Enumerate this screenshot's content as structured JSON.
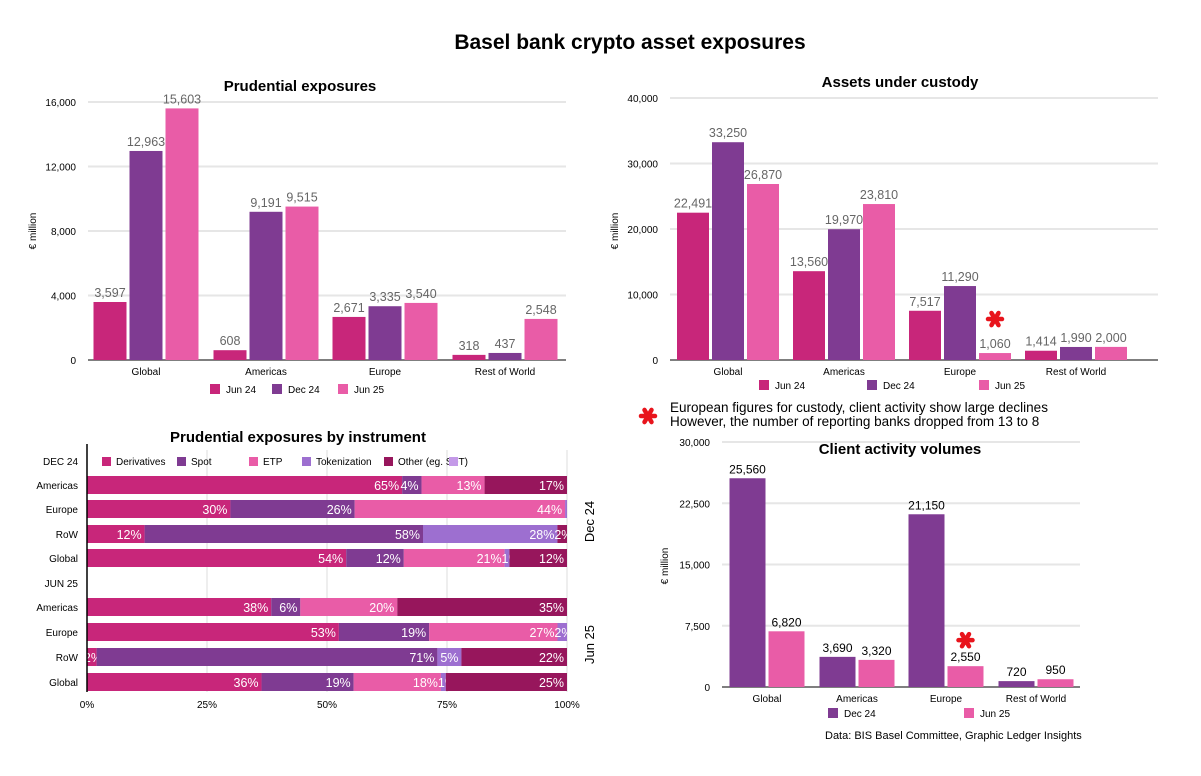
{
  "title": "Basel bank crypto asset exposures",
  "colors": {
    "jun24": "#c8267a",
    "dec24": "#7f3b92",
    "jun25": "#e95ca7",
    "derivatives": "#c8267a",
    "spot": "#7f3b92",
    "etp": "#e95ca7",
    "tokenization": "#9d6fd0",
    "other": "#97165c",
    "unlabeled": "#c49ae8",
    "asterisk": "#e8141c"
  },
  "note": {
    "icon": "asterisk-icon",
    "line1": "European figures for custody, client activity show large declines",
    "line2": "However, the number of reporting banks dropped from 13 to 8"
  },
  "source": "Data: BIS Basel Committee, Graphic Ledger Insights",
  "chart_data": [
    {
      "type": "bar",
      "title": "Prudential exposures",
      "ylabel": "€ million",
      "ylim": [
        0,
        16000
      ],
      "yticks": [
        "0",
        "4,000",
        "8,000",
        "12,000",
        "16,000"
      ],
      "grid": true,
      "legend": "bottom",
      "categories": [
        "Global",
        "Americas",
        "Europe",
        "Rest of World"
      ],
      "series": [
        {
          "name": "Jun 24",
          "values": [
            3597,
            608,
            2671,
            318
          ],
          "labels": [
            "3,597",
            "608",
            "2,671",
            "318"
          ]
        },
        {
          "name": "Dec 24",
          "values": [
            12963,
            9191,
            3335,
            437
          ],
          "labels": [
            "12,963",
            "9,191",
            "3,335",
            "437"
          ]
        },
        {
          "name": "Jun 25",
          "values": [
            15603,
            9515,
            3540,
            2548
          ],
          "labels": [
            "15,603",
            "9,515",
            "3,540",
            "2,548"
          ]
        }
      ]
    },
    {
      "type": "bar",
      "title": "Assets under custody",
      "ylabel": "€ million",
      "ylim": [
        0,
        40000
      ],
      "yticks": [
        "0",
        "10,000",
        "20,000",
        "30,000",
        "40,000"
      ],
      "grid": true,
      "legend": "bottom",
      "categories": [
        "Global",
        "Americas",
        "Europe",
        "Rest of World"
      ],
      "series": [
        {
          "name": "Jun 24",
          "values": [
            22491,
            13560,
            7517,
            1414
          ],
          "labels": [
            "22,491",
            "13,560",
            "7,517",
            "1,414"
          ]
        },
        {
          "name": "Dec 24",
          "values": [
            33250,
            19970,
            11290,
            1990
          ],
          "labels": [
            "33,250",
            "19,970",
            "11,290",
            "1,990"
          ]
        },
        {
          "name": "Jun 25",
          "values": [
            26870,
            23810,
            1060,
            2000
          ],
          "labels": [
            "26,870",
            "23,810",
            "1,060",
            "2,000"
          ]
        }
      ],
      "annotation": {
        "category": "Europe",
        "series": "Jun 25",
        "marker": "asterisk-icon"
      }
    },
    {
      "type": "bar",
      "title": "Client activity volumes",
      "ylabel": "€ million",
      "ylim": [
        0,
        30000
      ],
      "yticks": [
        "0",
        "7,500",
        "15,000",
        "22,500",
        "30,000"
      ],
      "grid": true,
      "legend": "bottom",
      "categories": [
        "Global",
        "Americas",
        "Europe",
        "Rest of World"
      ],
      "series": [
        {
          "name": "Dec 24",
          "values": [
            25560,
            3690,
            21150,
            720
          ],
          "labels": [
            "25,560",
            "3,690",
            "21,150",
            "720"
          ]
        },
        {
          "name": "Jun 25",
          "values": [
            6820,
            3320,
            2550,
            950
          ],
          "labels": [
            "6,820",
            "3,320",
            "2,550",
            "950"
          ]
        }
      ],
      "annotation": {
        "category": "Europe",
        "series": "Jun 25",
        "marker": "asterisk-icon"
      }
    },
    {
      "type": "bar",
      "orientation": "horizontal-stacked-100",
      "title": "Prudential exposures by instrument",
      "xlim": [
        0,
        100
      ],
      "xticks": [
        "0%",
        "25%",
        "50%",
        "75%",
        "100%"
      ],
      "grid": true,
      "legend": "top",
      "legend_entries": [
        "Derivatives",
        "Spot",
        "ETP",
        "Tokenization",
        "Other (eg. SFT)",
        ""
      ],
      "groups": [
        {
          "name": "DEC 24",
          "side_label": "Dec 24",
          "rows": [
            {
              "category": "Americas",
              "values": [
                65,
                4,
                13,
                0,
                17
              ]
            },
            {
              "category": "Europe",
              "values": [
                30,
                26,
                44,
                0.4,
                0
              ]
            },
            {
              "category": "RoW",
              "values": [
                12,
                58,
                0,
                28,
                2
              ]
            },
            {
              "category": "Global",
              "values": [
                54,
                12,
                21,
                1,
                12
              ]
            }
          ]
        },
        {
          "name": "JUN 25",
          "side_label": "Jun 25",
          "rows": [
            {
              "category": "Americas",
              "values": [
                38,
                6,
                20,
                0,
                35
              ]
            },
            {
              "category": "Europe",
              "values": [
                53,
                19,
                27,
                2,
                0
              ]
            },
            {
              "category": "RoW",
              "values": [
                2,
                71,
                0,
                5,
                22
              ]
            },
            {
              "category": "Global",
              "values": [
                36,
                19,
                18,
                1,
                25
              ]
            }
          ]
        }
      ]
    }
  ]
}
